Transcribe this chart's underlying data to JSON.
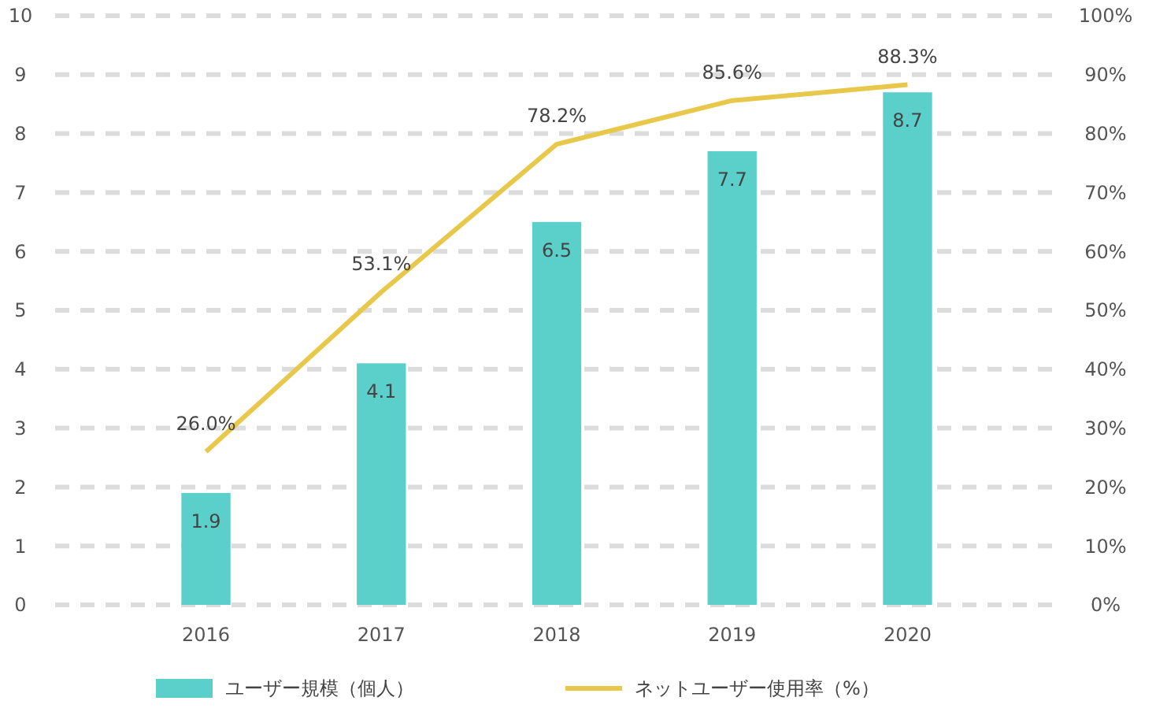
{
  "chart_data": {
    "type": "bar",
    "categories": [
      "2016",
      "2017",
      "2018",
      "2019",
      "2020"
    ],
    "series": [
      {
        "name": "ユーザー規模（個人）",
        "color": "#5bcfc9",
        "values": [
          1.9,
          4.1,
          6.5,
          7.7,
          8.7
        ],
        "value_labels": [
          "1.9",
          "4.1",
          "6.5",
          "7.7",
          "8.7"
        ]
      },
      {
        "name": "ネットユーザー使用率（%）",
        "type": "line",
        "axis": "y2",
        "color": "#e8c84a",
        "values": [
          26.0,
          53.1,
          78.2,
          85.6,
          88.3
        ],
        "value_labels": [
          "26.0%",
          "53.1%",
          "78.2%",
          "85.6%",
          "88.3%"
        ]
      }
    ],
    "ylim": [
      0,
      10
    ],
    "yticks": [
      0,
      1,
      2,
      3,
      4,
      5,
      6,
      7,
      8,
      9,
      10
    ],
    "y2lim": [
      0,
      100
    ],
    "y2ticks": [
      {
        "value": 0,
        "label": "0%"
      },
      {
        "value": 10,
        "label": "10%"
      },
      {
        "value": 20,
        "label": "20%"
      },
      {
        "value": 30,
        "label": "30%"
      },
      {
        "value": 40,
        "label": "40%"
      },
      {
        "value": 50,
        "label": "50%"
      },
      {
        "value": 60,
        "label": "60%"
      },
      {
        "value": 70,
        "label": "70%"
      },
      {
        "value": 80,
        "label": "80%"
      },
      {
        "value": 90,
        "label": "90%"
      },
      {
        "value": 100,
        "label": "100%"
      }
    ],
    "grid": "y",
    "legend": "bottom",
    "line_style": "solid",
    "marker": "none"
  }
}
